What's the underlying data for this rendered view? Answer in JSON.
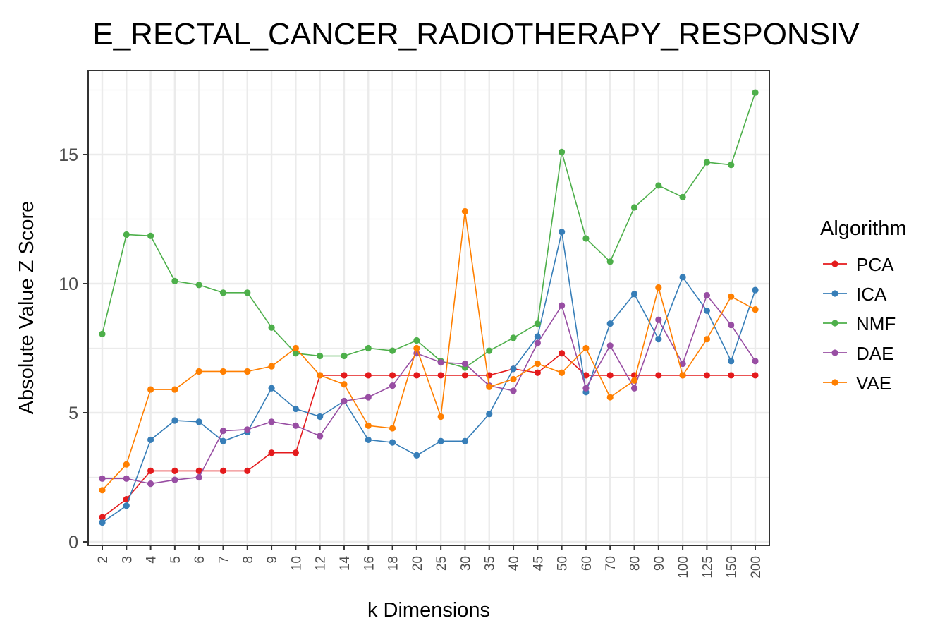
{
  "chart_data": {
    "type": "line",
    "title": "E_RECTAL_CANCER_RADIOTHERAPY_RESPONSIV",
    "xlabel": "k Dimensions",
    "ylabel": "Absolute Value Z Score",
    "categories": [
      "2",
      "3",
      "4",
      "5",
      "6",
      "7",
      "8",
      "9",
      "10",
      "12",
      "14",
      "16",
      "18",
      "20",
      "25",
      "30",
      "35",
      "40",
      "45",
      "50",
      "60",
      "70",
      "80",
      "90",
      "100",
      "125",
      "150",
      "200"
    ],
    "ylim": [
      0,
      18.1
    ],
    "yticks": [
      0,
      5,
      10,
      15
    ],
    "grid": true,
    "legend": {
      "title": "Algorithm",
      "placement": "right"
    },
    "series": [
      {
        "name": "PCA",
        "color": "#e41a1c",
        "values": [
          0.95,
          1.65,
          2.75,
          2.75,
          2.75,
          2.75,
          2.75,
          3.45,
          3.45,
          6.45,
          6.45,
          6.45,
          6.45,
          6.45,
          6.45,
          6.45,
          6.45,
          6.7,
          6.55,
          7.3,
          6.45,
          6.45,
          6.45,
          6.45,
          6.45,
          6.45,
          6.45,
          6.45
        ]
      },
      {
        "name": "ICA",
        "color": "#377eb8",
        "values": [
          0.75,
          1.4,
          3.95,
          4.7,
          4.65,
          3.9,
          4.25,
          5.95,
          5.15,
          4.85,
          5.45,
          3.95,
          3.85,
          3.35,
          3.9,
          3.9,
          4.95,
          6.7,
          7.95,
          12.0,
          5.8,
          8.45,
          9.6,
          7.85,
          10.25,
          8.95,
          7.0,
          9.75
        ]
      },
      {
        "name": "NMF",
        "color": "#4daf4a",
        "values": [
          8.05,
          11.9,
          11.85,
          10.1,
          9.95,
          9.65,
          9.65,
          8.3,
          7.3,
          7.2,
          7.2,
          7.5,
          7.4,
          7.8,
          7.0,
          6.75,
          7.4,
          7.9,
          8.45,
          15.1,
          11.75,
          10.85,
          12.95,
          13.8,
          13.35,
          14.7,
          14.6,
          17.4
        ]
      },
      {
        "name": "DAE",
        "color": "#984ea3",
        "values": [
          2.45,
          2.45,
          2.25,
          2.4,
          2.5,
          4.3,
          4.35,
          4.65,
          4.5,
          4.1,
          5.45,
          5.6,
          6.05,
          7.3,
          6.95,
          6.9,
          6.05,
          5.85,
          7.7,
          9.15,
          5.95,
          7.6,
          5.95,
          8.6,
          6.9,
          9.55,
          8.4,
          7.0
        ]
      },
      {
        "name": "VAE",
        "color": "#ff7f00",
        "values": [
          2.0,
          3.0,
          5.9,
          5.9,
          6.6,
          6.6,
          6.6,
          6.8,
          7.5,
          6.45,
          6.1,
          4.5,
          4.4,
          7.5,
          4.85,
          12.8,
          6.0,
          6.3,
          6.9,
          6.55,
          7.5,
          5.6,
          6.25,
          9.85,
          6.45,
          7.85,
          9.5,
          9.0
        ]
      }
    ]
  }
}
